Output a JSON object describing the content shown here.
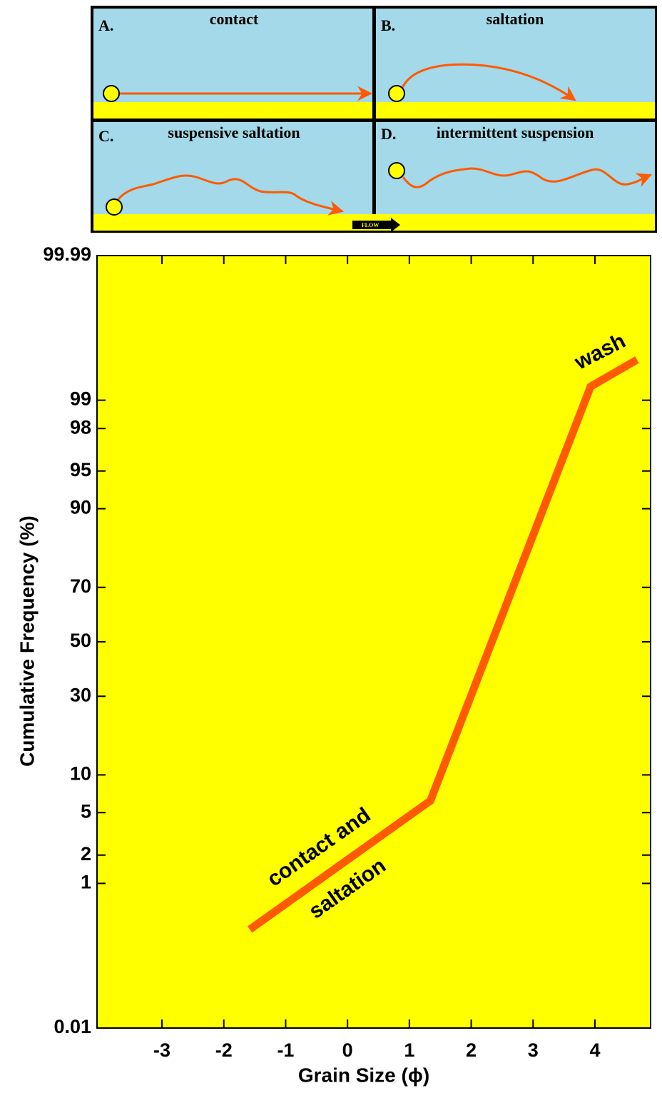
{
  "diagram": {
    "panels": [
      {
        "letter": "A.",
        "title": "contact"
      },
      {
        "letter": "B.",
        "title": "saltation"
      },
      {
        "letter": "C.",
        "title": "suspensive saltation"
      },
      {
        "letter": "D.",
        "title": "intermittent suspension"
      }
    ],
    "flow_label": "FLOW"
  },
  "chart_data": {
    "type": "line",
    "x_label": "Grain Size (ϕ)",
    "y_label": "Cumulative Frequency (%)",
    "y_scale": "probability",
    "x": [
      -1.58,
      1.34,
      3.93,
      4.68
    ],
    "values": [
      0.28,
      6.3,
      99.3,
      99.67
    ],
    "color": "#ff5a00",
    "background": "#ffff00",
    "xlim": [
      -4.05,
      4.9
    ],
    "xticks": [
      -3,
      -2,
      -1,
      0,
      1,
      2,
      3,
      4
    ],
    "ylim": [
      0.01,
      99.99
    ],
    "yticks": [
      0.01,
      1,
      2,
      5,
      10,
      30,
      50,
      70,
      90,
      95,
      98,
      99,
      99.99
    ],
    "annotations": [
      "contact and",
      "saltation",
      "wash"
    ]
  }
}
